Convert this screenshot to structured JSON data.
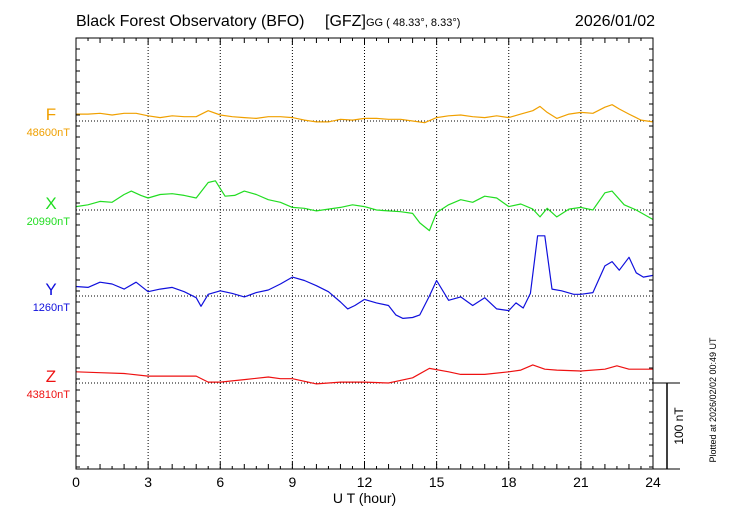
{
  "header": {
    "title": "Black Forest Observatory (BFO)",
    "institute": "[GFZ]",
    "coords": "GG ( 48.33°,   8.33°)",
    "date": "2026/01/02"
  },
  "side_note": "Plotted at 2026/02/02 00:49 UT",
  "scale_label": "100 nT",
  "chart_data": {
    "type": "line",
    "xlabel": "U T (hour)",
    "xlim": [
      0,
      24
    ],
    "xticks": [
      "0",
      "3",
      "6",
      "9",
      "12",
      "15",
      "18",
      "21",
      "24"
    ],
    "grid": true,
    "scale_bar_nT": 100,
    "series": [
      {
        "name": "F",
        "baseline_label": "48600nT",
        "baseline": 48600,
        "color": "#f0a000",
        "x": [
          0,
          0.5,
          1,
          1.5,
          2,
          2.5,
          3,
          3.5,
          4,
          4.5,
          5,
          5.5,
          6,
          6.5,
          7,
          7.5,
          8,
          8.5,
          9,
          9.5,
          10,
          10.5,
          11,
          11.5,
          12,
          12.5,
          13,
          13.5,
          14,
          14.5,
          15,
          15.5,
          16,
          16.5,
          17,
          17.5,
          18,
          18.5,
          19,
          19.3,
          19.6,
          20,
          20.5,
          21,
          21.5,
          22,
          22.3,
          22.6,
          23,
          23.5,
          24
        ],
        "y": [
          48608,
          48608,
          48609,
          48607,
          48609,
          48609,
          48606,
          48604,
          48606,
          48605,
          48605,
          48612,
          48607,
          48605,
          48604,
          48603,
          48605,
          48605,
          48604,
          48601,
          48599,
          48599,
          48602,
          48601,
          48603,
          48603,
          48602,
          48602,
          48600,
          48598,
          48604,
          48606,
          48607,
          48605,
          48604,
          48606,
          48604,
          48608,
          48612,
          48617,
          48610,
          48603,
          48608,
          48610,
          48609,
          48616,
          48619,
          48614,
          48608,
          48601,
          48599
        ]
      },
      {
        "name": "X",
        "baseline_label": "20990nT",
        "baseline": 20990,
        "color": "#22dd22",
        "x": [
          0,
          0.5,
          1,
          1.5,
          2,
          2.3,
          2.7,
          3,
          3.5,
          4,
          4.5,
          5,
          5.5,
          5.8,
          6.2,
          6.6,
          7,
          7.5,
          8,
          8.5,
          9,
          9.5,
          10,
          10.5,
          11,
          11.5,
          12,
          12.5,
          13,
          13.5,
          14,
          14.3,
          14.7,
          15,
          15.5,
          16,
          16.5,
          17,
          17.5,
          18,
          18.5,
          19,
          19.3,
          19.6,
          20,
          20.5,
          21,
          21.5,
          22,
          22.3,
          22.8,
          23.3,
          24
        ],
        "y": [
          20994,
          20996,
          21000,
          20999,
          21008,
          21012,
          21007,
          21004,
          21008,
          21009,
          21007,
          21004,
          21022,
          21024,
          21006,
          21007,
          21012,
          21008,
          21002,
          20999,
          20993,
          20992,
          20989,
          20991,
          20993,
          20996,
          20994,
          20990,
          20989,
          20988,
          20986,
          20975,
          20966,
          20987,
          20996,
          21002,
          20999,
          21006,
          21004,
          20994,
          20997,
          20991,
          20982,
          20992,
          20982,
          20991,
          20993,
          20990,
          21010,
          21012,
          20996,
          20990,
          20979
        ]
      },
      {
        "name": "Y",
        "baseline_label": "1260nT",
        "baseline": 1260,
        "color": "#1010dd",
        "x": [
          0,
          0.5,
          1,
          1.5,
          2,
          2.5,
          3,
          3.5,
          4,
          4.5,
          5,
          5.2,
          5.5,
          6,
          6.5,
          7,
          7.5,
          8,
          8.5,
          9,
          9.5,
          10,
          10.5,
          11,
          11.3,
          11.6,
          12,
          12.5,
          13,
          13.3,
          13.6,
          14,
          14.3,
          14.7,
          15,
          15.5,
          16,
          16.5,
          17,
          17.5,
          18,
          18.3,
          18.6,
          18.9,
          19.2,
          19.5,
          19.8,
          20.2,
          20.7,
          21,
          21.5,
          22,
          22.3,
          22.6,
          23,
          23.3,
          23.6,
          24
        ],
        "y": [
          1271,
          1270,
          1276,
          1274,
          1268,
          1276,
          1265,
          1268,
          1270,
          1265,
          1258,
          1248,
          1262,
          1266,
          1263,
          1259,
          1264,
          1267,
          1274,
          1282,
          1278,
          1272,
          1265,
          1253,
          1245,
          1249,
          1256,
          1252,
          1249,
          1238,
          1234,
          1235,
          1238,
          1260,
          1278,
          1255,
          1259,
          1249,
          1258,
          1245,
          1243,
          1252,
          1246,
          1263,
          1330,
          1330,
          1268,
          1266,
          1262,
          1262,
          1264,
          1295,
          1300,
          1290,
          1305,
          1287,
          1282,
          1284
        ]
      },
      {
        "name": "Z",
        "baseline_label": "43810nT",
        "baseline": 43810,
        "color": "#ee1111",
        "x": [
          0,
          1,
          2,
          3,
          4,
          5,
          5.5,
          6,
          7,
          8,
          8.5,
          9,
          10,
          11,
          12,
          13,
          14,
          14.7,
          15.5,
          16,
          17,
          18,
          18.5,
          19,
          19.5,
          20,
          21,
          22,
          22.5,
          23,
          24
        ],
        "y": [
          43823,
          43822,
          43821,
          43818,
          43818,
          43818,
          43811,
          43811,
          43814,
          43817,
          43815,
          43815,
          43809,
          43811,
          43811,
          43810,
          43816,
          43827,
          43823,
          43820,
          43820,
          43823,
          43825,
          43831,
          43826,
          43825,
          43824,
          43826,
          43830,
          43826,
          43826
        ]
      }
    ]
  }
}
